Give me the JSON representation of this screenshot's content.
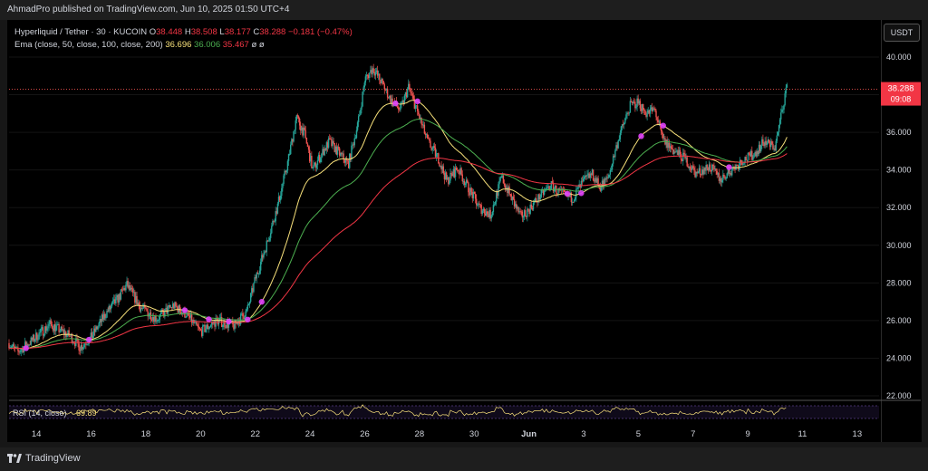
{
  "header": {
    "published": "AhmadPro published on TradingView.com, Jun 10, 2025 01:50 UTC+4"
  },
  "legend": {
    "symbol": "Hyperliquid / Tether · 30 · KUCOIN",
    "o_label": "O",
    "o": "38.448",
    "h_label": "H",
    "h": "38.508",
    "l_label": "L",
    "l": "38.177",
    "c_label": "C",
    "c": "38.288",
    "change": "−0.181 (−0.47%)",
    "ema_label": "Ema (close, 50, close, 100, close, 200)",
    "ema50": "36.696",
    "ema100": "36.006",
    "ema200": "35.467",
    "ema_extra": "ø  ø"
  },
  "currency": "USDT",
  "price_tag": {
    "price": "38.288",
    "time": "09:08"
  },
  "rsi": {
    "label": "RSI (14, close)",
    "value": "69.89"
  },
  "footer": {
    "brand": "TradingView"
  },
  "colors": {
    "up": "#26a69a",
    "down": "#ef5350",
    "ema50": "#f7e07a",
    "ema100": "#4caf50",
    "ema200": "#f23645",
    "rsi": "#f7e07a",
    "marker": "#e040fb"
  },
  "chart_data": {
    "type": "candlestick",
    "y_ticks": [
      "40.000",
      "38.000",
      "36.000",
      "34.000",
      "32.000",
      "30.000",
      "28.000",
      "26.000",
      "24.000",
      "22.000"
    ],
    "x_ticks": [
      "14",
      "16",
      "18",
      "20",
      "22",
      "24",
      "26",
      "28",
      "30",
      "Jun",
      "3",
      "5",
      "7",
      "9",
      "11",
      "13"
    ],
    "ylim": [
      22,
      41
    ],
    "price_path": {
      "x": [
        13.0,
        13.3,
        13.8,
        14.5,
        15.2,
        15.6,
        16.0,
        16.5,
        17.0,
        17.3,
        17.8,
        18.4,
        19.0,
        19.5,
        20.0,
        20.6,
        21.2,
        21.7,
        22.0,
        22.4,
        22.8,
        23.2,
        23.5,
        23.8,
        24.1,
        24.4,
        24.7,
        25.0,
        25.4,
        25.8,
        26.0,
        26.3,
        26.6,
        27.0,
        27.3,
        27.6,
        27.9,
        28.3,
        28.7,
        29.0,
        29.4,
        29.8,
        30.2,
        30.6,
        31.0,
        31.4,
        31.7,
        32.0,
        32.4,
        32.8,
        33.2,
        33.6,
        34.0,
        34.3,
        34.6,
        34.9,
        35.3,
        35.7,
        36.0,
        36.3,
        36.6,
        36.9,
        37.3,
        37.7,
        38.1,
        38.6,
        39.0,
        39.4,
        39.8,
        40.2,
        40.6,
        41.0,
        41.4
      ],
      "close": [
        24.8,
        24.3,
        24.9,
        25.8,
        25.2,
        24.6,
        25.1,
        26.3,
        27.2,
        27.9,
        26.7,
        26.1,
        26.8,
        26.3,
        25.4,
        26.0,
        25.7,
        26.5,
        28.2,
        30.0,
        32.0,
        34.5,
        36.8,
        35.9,
        34.0,
        34.8,
        35.5,
        35.0,
        34.3,
        36.8,
        38.8,
        39.4,
        38.7,
        37.6,
        37.2,
        38.4,
        37.2,
        35.5,
        34.6,
        33.4,
        34.1,
        33.0,
        32.0,
        31.6,
        33.6,
        32.4,
        31.5,
        31.9,
        32.6,
        33.2,
        32.7,
        32.5,
        33.4,
        33.8,
        33.1,
        33.6,
        35.8,
        37.4,
        37.6,
        37.0,
        37.2,
        35.6,
        35.0,
        34.6,
        33.8,
        34.2,
        33.5,
        34.0,
        34.5,
        34.8,
        35.5,
        35.2,
        38.3
      ]
    },
    "ema50_last": 36.696,
    "ema100_last": 36.006,
    "ema200_last": 35.467,
    "rsi_last": 69.89
  }
}
